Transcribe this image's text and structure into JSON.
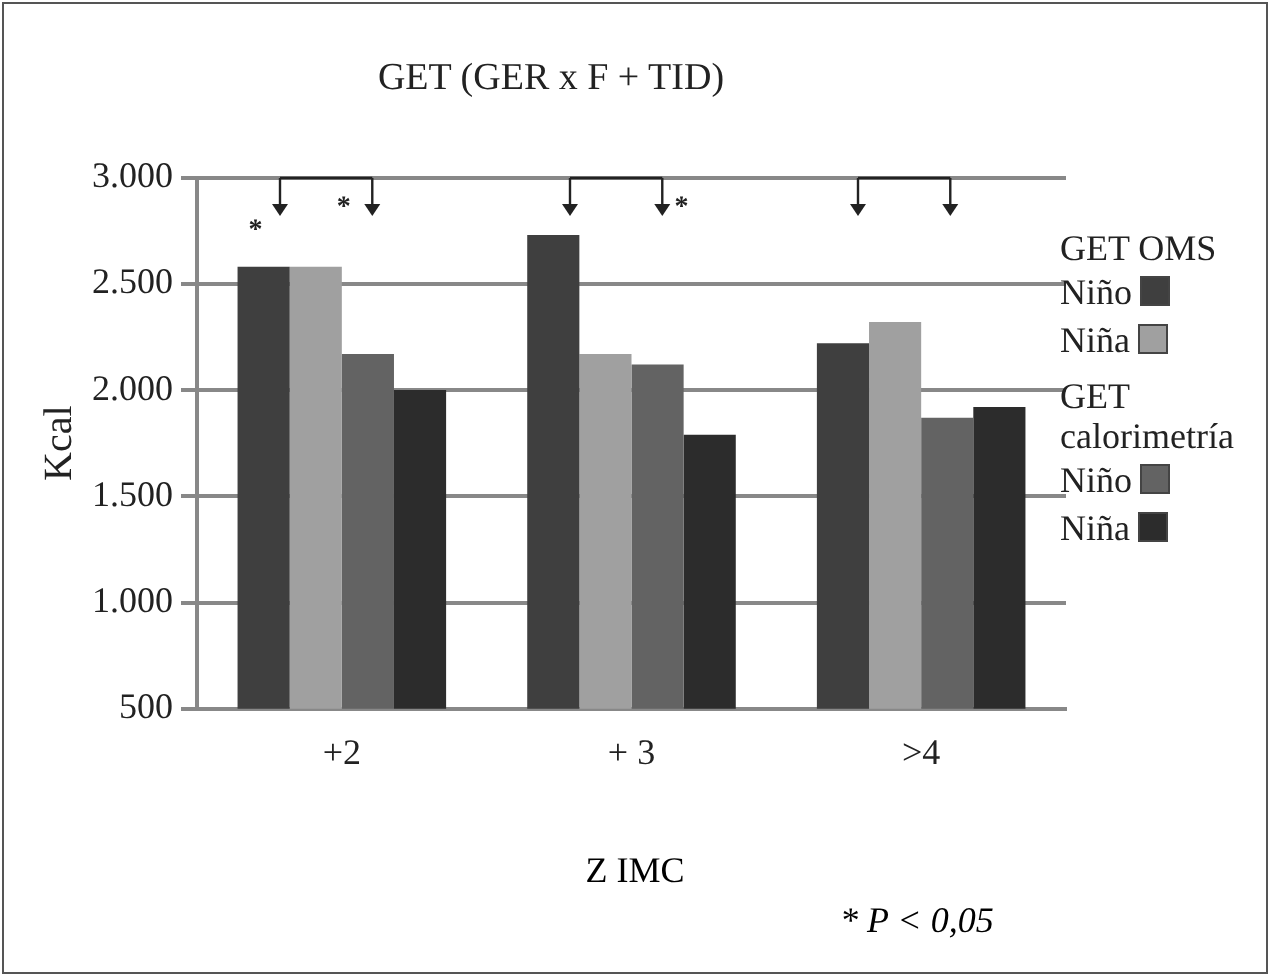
{
  "chart_data": {
    "type": "bar",
    "title": "GET (GER x F + TID)",
    "xlabel": "Z IMC",
    "ylabel": "Kcal",
    "categories": [
      "+2",
      "+ 3",
      ">4"
    ],
    "series": [
      {
        "name": "Niño",
        "color": "#3f3f3f",
        "values": [
          2580,
          2730,
          2220
        ]
      },
      {
        "name": "Niña",
        "color": "#a0a0a0",
        "values": [
          2580,
          2170,
          2320
        ]
      },
      {
        "name": "Niño",
        "color": "#636363",
        "values": [
          2170,
          2120,
          1870
        ]
      },
      {
        "name": "Niña",
        "color": "#2c2c2c",
        "values": [
          2000,
          1790,
          1920
        ]
      }
    ],
    "ylim": [
      500,
      3000
    ],
    "yticks": [
      {
        "value": 500,
        "label": "500"
      },
      {
        "value": 1000,
        "label": "1.000"
      },
      {
        "value": 1500,
        "label": "1.500"
      },
      {
        "value": 2000,
        "label": "2.000"
      },
      {
        "value": 2500,
        "label": "2.500"
      },
      {
        "value": 3000,
        "label": "3.000"
      }
    ],
    "grid": "y",
    "legend": "right",
    "annotations": [
      "GET OMS",
      "GET calorimetría",
      "*",
      "*",
      "*",
      "* P < 0,05"
    ]
  }
}
